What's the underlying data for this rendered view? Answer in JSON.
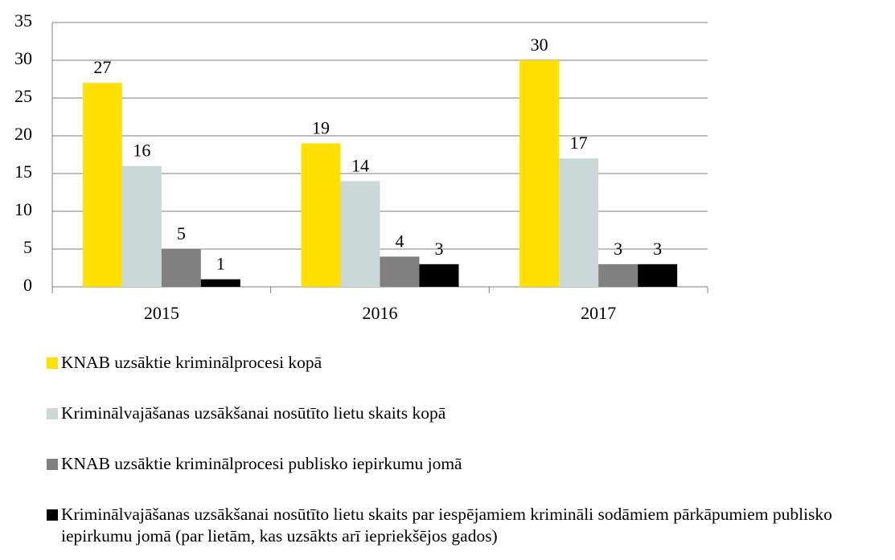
{
  "chart_data": {
    "type": "bar",
    "categories": [
      "2015",
      "2016",
      "2017"
    ],
    "series": [
      {
        "name": "KNAB uzsāktie kriminālprocesi kopā",
        "color": "#ffe000",
        "values": [
          27,
          19,
          30
        ]
      },
      {
        "name": "Kriminālvajāšanas uzsākšanai nosūtīto lietu skaits kopā",
        "color": "#cbd8d8",
        "values": [
          16,
          14,
          17
        ]
      },
      {
        "name": "KNAB uzsāktie kriminālprocesi publisko iepirkumu jomā",
        "color": "#808080",
        "values": [
          5,
          4,
          3
        ]
      },
      {
        "name": "Kriminālvajāšanas uzsākšanai nosūtīto lietu skaits par iespējamiem krimināli sodāmiem pārkāpumiem publisko iepirkumu jomā (par lietām, kas uzsākts arī iepriekšējos gados)",
        "color": "#000000",
        "values": [
          1,
          3,
          3
        ]
      }
    ],
    "ylim": [
      0,
      35
    ],
    "yticks": [
      0,
      5,
      10,
      15,
      20,
      25,
      30,
      35
    ],
    "grid": true,
    "legend": "bottom"
  }
}
